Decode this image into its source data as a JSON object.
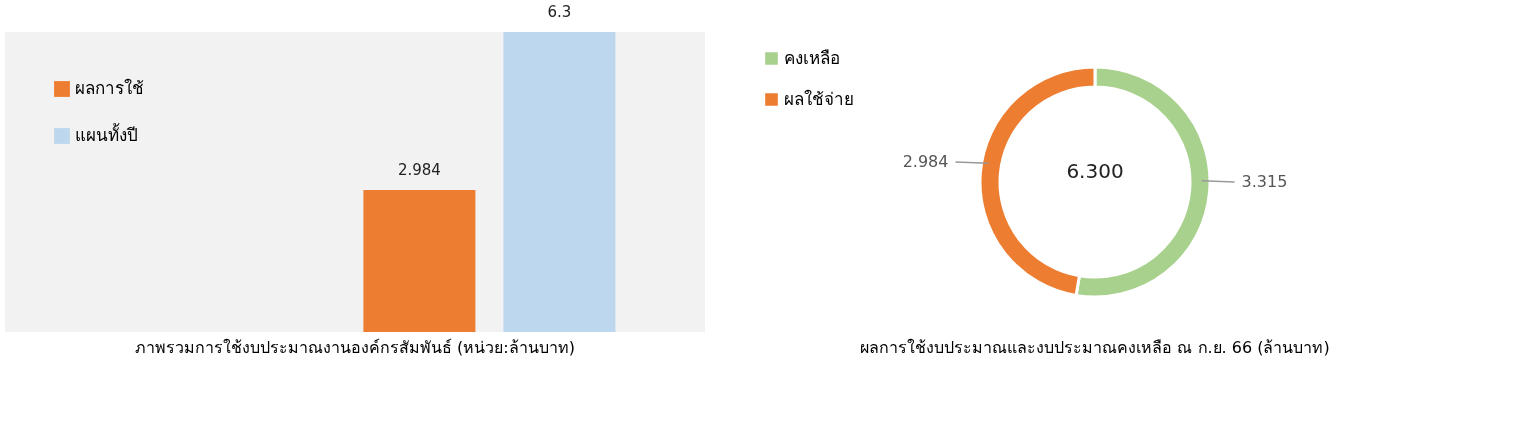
{
  "chart_data": [
    {
      "type": "bar",
      "title": "ภาพรวมการใช้งบประมาณงานองค์กรสัมพันธ์ (หน่วย:ล้านบาท)",
      "categories": [
        null
      ],
      "series": [
        {
          "name": "ผลการใช้",
          "color": "#ed7d31",
          "values": [
            2.984
          ]
        },
        {
          "name": "แผนทั้งปี",
          "color": "#bdd7ee",
          "values": [
            6.3
          ]
        }
      ],
      "data_labels": true,
      "legend": "top left",
      "grid": false
    },
    {
      "type": "donut",
      "title": "ผลการใช้งบประมาณและงบประมาณคงเหลือ ณ ก.ย. 66 (ล้านบาท)",
      "categories": [
        "คงเหลือ",
        "ผลใช้จ่าย"
      ],
      "values": [
        3.315,
        2.984
      ],
      "colors": [
        "#a9d18e",
        "#ed7d31"
      ],
      "annotations": [
        "6.300"
      ],
      "data_labels": true,
      "legend": "top left"
    }
  ]
}
